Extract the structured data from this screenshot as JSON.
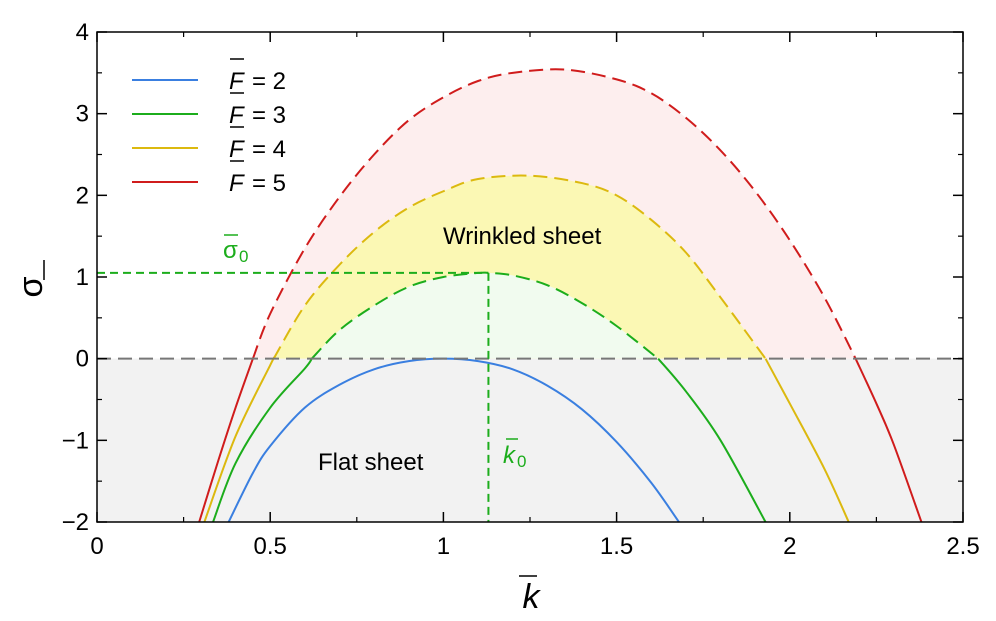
{
  "chart_data": {
    "type": "line",
    "title": "",
    "xlabel": "k",
    "ylabel": "σ",
    "xlim": [
      0,
      2.5
    ],
    "ylim": [
      -2,
      4
    ],
    "x_ticks": [
      0,
      0.5,
      1,
      1.5,
      2,
      2.5
    ],
    "x_tick_labels": [
      "0",
      "0.5",
      "1",
      "1.5",
      "2",
      "2.5"
    ],
    "y_ticks": [
      -2,
      -1,
      0,
      1,
      2,
      3,
      4
    ],
    "y_tick_labels": [
      "−2",
      "−1",
      "0",
      "1",
      "2",
      "3",
      "4"
    ],
    "grid": false,
    "legend_position": "top-left",
    "series": [
      {
        "name": "F = 2",
        "legend_var": "F",
        "legend_value": "= 2",
        "color": "#3a7fe0",
        "x": [
          0.38,
          0.45,
          0.5,
          0.6,
          0.7,
          0.8,
          0.9,
          1.0,
          1.1,
          1.2,
          1.3,
          1.4,
          1.5,
          1.6,
          1.68
        ],
        "y": [
          -2.0,
          -1.4,
          -1.07,
          -0.6,
          -0.32,
          -0.13,
          -0.03,
          0.0,
          -0.03,
          -0.13,
          -0.33,
          -0.62,
          -1.02,
          -1.52,
          -2.0
        ],
        "dashed_from": null
      },
      {
        "name": "F = 3",
        "legend_var": "F",
        "legend_value": "= 3",
        "color": "#1cad1c",
        "x": [
          0.335,
          0.4,
          0.5,
          0.6,
          0.62,
          0.7,
          0.8,
          0.9,
          1.0,
          1.1,
          1.13,
          1.2,
          1.3,
          1.4,
          1.5,
          1.62,
          1.7,
          1.8,
          1.93
        ],
        "y": [
          -2.0,
          -1.28,
          -0.6,
          -0.12,
          0.0,
          0.35,
          0.65,
          0.88,
          1.0,
          1.05,
          1.05,
          1.02,
          0.9,
          0.68,
          0.4,
          0.0,
          -0.4,
          -1.0,
          -2.0
        ],
        "dashed_from": 0.62,
        "dashed_to": 1.62
      },
      {
        "name": "F = 4",
        "legend_var": "F",
        "legend_value": "= 4",
        "color": "#dcb90f",
        "x": [
          0.31,
          0.4,
          0.5,
          0.51,
          0.6,
          0.7,
          0.8,
          0.9,
          1.0,
          1.1,
          1.25,
          1.4,
          1.5,
          1.6,
          1.7,
          1.8,
          1.93,
          2.0,
          2.1,
          2.17
        ],
        "y": [
          -2.0,
          -0.95,
          -0.08,
          0.0,
          0.65,
          1.15,
          1.55,
          1.85,
          2.05,
          2.2,
          2.24,
          2.15,
          2.0,
          1.7,
          1.3,
          0.75,
          0.0,
          -0.55,
          -1.35,
          -2.0
        ],
        "dashed_from": 0.51,
        "dashed_to": 1.93
      },
      {
        "name": "F = 5",
        "legend_var": "F",
        "legend_value": "= 5",
        "color": "#d01c1c",
        "x": [
          0.295,
          0.35,
          0.4,
          0.45,
          0.5,
          0.6,
          0.7,
          0.8,
          0.9,
          1.0,
          1.1,
          1.2,
          1.35,
          1.5,
          1.6,
          1.7,
          1.8,
          1.9,
          2.0,
          2.1,
          2.19,
          2.25,
          2.3,
          2.38
        ],
        "y": [
          -2.0,
          -1.25,
          -0.6,
          0.0,
          0.55,
          1.35,
          1.98,
          2.5,
          2.92,
          3.2,
          3.4,
          3.5,
          3.54,
          3.42,
          3.25,
          2.95,
          2.55,
          2.05,
          1.45,
          0.75,
          0.0,
          -0.55,
          -1.05,
          -2.0
        ],
        "dashed_from": 0.45,
        "dashed_to": 2.19
      }
    ],
    "reference_lines": {
      "zero_line": {
        "y": 0,
        "color": "#777777"
      },
      "sigma0": {
        "y": 1.05,
        "x_end": 1.13,
        "color": "#1cad1c"
      },
      "k0": {
        "x": 1.13,
        "y_start": 1.05,
        "color": "#1cad1c"
      }
    },
    "annotations": {
      "wrinkled": "Wrinkled sheet",
      "flat": "Flat sheet",
      "sigma0_symbol": "σ",
      "sigma0_sub": "0",
      "k0_symbol": "k",
      "k0_sub": "0"
    },
    "colors": {
      "flat_fill": "#f2f2f2",
      "red_fill": "#fdeeee",
      "yellow_fill": "#fbf8b4",
      "green_fill": "#f1fbef"
    }
  }
}
